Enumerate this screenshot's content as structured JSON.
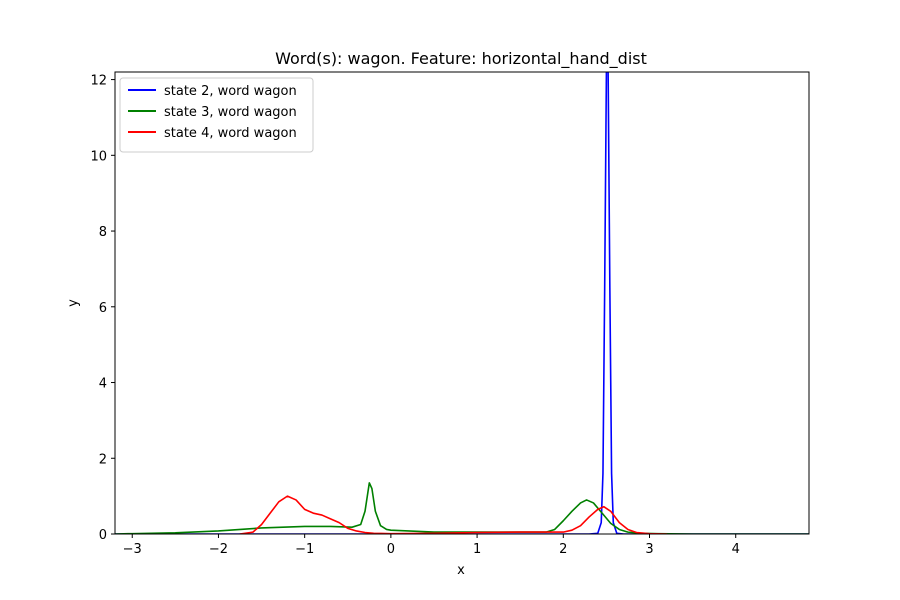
{
  "chart_data": {
    "type": "line",
    "title": "Word(s): wagon. Feature: horizontal_hand_dist",
    "xlabel": "x",
    "ylabel": "y",
    "xlim": [
      -3.2,
      4.85
    ],
    "ylim": [
      0,
      12.2
    ],
    "xticks": [
      -3,
      -2,
      -1,
      0,
      1,
      2,
      3,
      4
    ],
    "yticks": [
      0,
      2,
      4,
      6,
      8,
      10,
      12
    ],
    "grid": false,
    "legend_position": "upper-left",
    "series": [
      {
        "name": "state 2, word wagon",
        "color": "#0000ff",
        "x": [
          -3.2,
          -2.0,
          -1.0,
          0.0,
          1.0,
          2.0,
          2.3,
          2.4,
          2.44,
          2.46,
          2.48,
          2.5,
          2.52,
          2.54,
          2.56,
          2.58,
          2.62,
          2.7,
          3.0,
          4.0,
          4.85
        ],
        "y": [
          0.0,
          0.0,
          0.0,
          0.0,
          0.0,
          0.0,
          0.0,
          0.02,
          0.3,
          1.6,
          6.5,
          12.2,
          12.2,
          6.5,
          1.6,
          0.3,
          0.02,
          0.0,
          0.0,
          0.0,
          0.0
        ]
      },
      {
        "name": "state 3, word wagon",
        "color": "#008000",
        "x": [
          -3.2,
          -3.0,
          -2.5,
          -2.0,
          -1.5,
          -1.0,
          -0.7,
          -0.45,
          -0.35,
          -0.3,
          -0.25,
          -0.22,
          -0.18,
          -0.12,
          -0.05,
          0.0,
          0.5,
          1.0,
          1.5,
          1.8,
          1.9,
          2.0,
          2.1,
          2.2,
          2.27,
          2.35,
          2.45,
          2.55,
          2.65,
          2.75,
          2.9,
          3.1,
          3.5,
          4.0,
          4.85
        ],
        "y": [
          0.0,
          0.01,
          0.03,
          0.08,
          0.16,
          0.2,
          0.2,
          0.18,
          0.25,
          0.6,
          1.35,
          1.2,
          0.6,
          0.22,
          0.12,
          0.1,
          0.05,
          0.05,
          0.05,
          0.05,
          0.12,
          0.35,
          0.6,
          0.82,
          0.9,
          0.82,
          0.55,
          0.28,
          0.12,
          0.05,
          0.02,
          0.01,
          0.0,
          0.0,
          0.0
        ]
      },
      {
        "name": "state 4, word wagon",
        "color": "#ff0000",
        "x": [
          -1.75,
          -1.6,
          -1.5,
          -1.4,
          -1.3,
          -1.2,
          -1.1,
          -1.0,
          -0.9,
          -0.8,
          -0.7,
          -0.6,
          -0.5,
          -0.4,
          -0.3,
          -0.2,
          0.0,
          0.5,
          1.0,
          1.5,
          2.0,
          2.1,
          2.2,
          2.3,
          2.4,
          2.47,
          2.55,
          2.65,
          2.75,
          2.85,
          3.0,
          3.2
        ],
        "y": [
          0.0,
          0.05,
          0.25,
          0.55,
          0.85,
          1.0,
          0.9,
          0.65,
          0.55,
          0.5,
          0.4,
          0.3,
          0.15,
          0.08,
          0.04,
          0.02,
          0.01,
          0.02,
          0.04,
          0.05,
          0.05,
          0.1,
          0.22,
          0.45,
          0.65,
          0.72,
          0.6,
          0.3,
          0.12,
          0.04,
          0.01,
          0.0
        ]
      }
    ]
  }
}
